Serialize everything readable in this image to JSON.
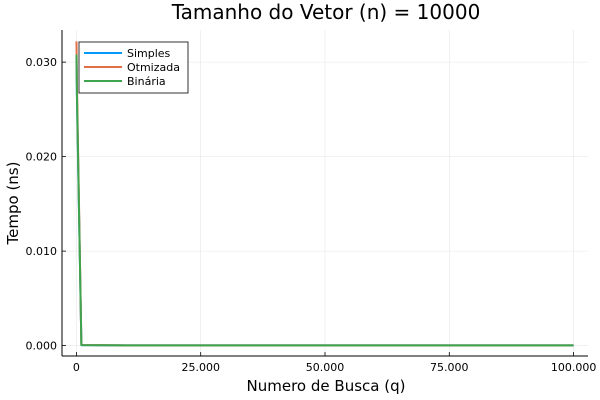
{
  "chart_data": {
    "type": "line",
    "title": "Tamanho do Vetor (n) = 10000",
    "xlabel": "Numero de Busca (q)",
    "ylabel": "Tempo (ns)",
    "xlim": [
      -2900,
      102900
    ],
    "ylim": [
      -0.0011,
      0.0334
    ],
    "x_ticks": [
      0,
      25000,
      50000,
      75000,
      100000
    ],
    "x_tick_labels": [
      "0",
      "25.000",
      "50.000",
      "75.000",
      "100.000"
    ],
    "y_ticks": [
      0.0,
      0.01,
      0.02,
      0.03
    ],
    "y_tick_labels": [
      "0.000",
      "0.010",
      "0.020",
      "0.030"
    ],
    "grid": true,
    "legend_position": "top-left",
    "series": [
      {
        "name": "Simples",
        "color": "#009AFA",
        "x": [
          10,
          100,
          1000,
          10000,
          100000
        ],
        "y": [
          0.0305,
          0.0265,
          5e-05,
          2e-05,
          2e-05
        ]
      },
      {
        "name": "Otmizada",
        "color": "#E36F47",
        "x": [
          10,
          100,
          1000,
          10000,
          100000
        ],
        "y": [
          0.0322,
          0.028,
          6e-05,
          2e-05,
          2e-05
        ]
      },
      {
        "name": "Binária",
        "color": "#3EA44E",
        "x": [
          10,
          100,
          1000,
          10000,
          100000
        ],
        "y": [
          0.0308,
          0.0268,
          5e-05,
          2e-05,
          2e-05
        ]
      }
    ]
  }
}
